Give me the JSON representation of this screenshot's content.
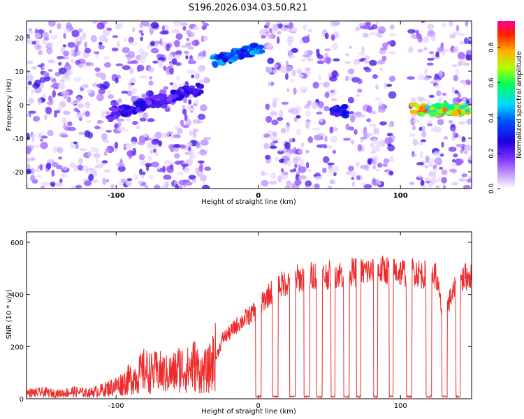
{
  "title": "S196.2026.034.03.50.R21",
  "chart_data": [
    {
      "type": "heatmap",
      "xlabel": "Height of straight line (km)",
      "ylabel": "Frequency (Hz)",
      "xlim": [
        -163,
        150
      ],
      "ylim": [
        -25,
        25
      ],
      "xticks": [
        -100,
        0,
        100
      ],
      "yticks": [
        -20,
        -10,
        0,
        10,
        20
      ],
      "colorbar": {
        "label": "Normalized spectral amplitude",
        "range": [
          0.0,
          0.95
        ],
        "ticks": [
          "0.0",
          "0.2",
          "0.4",
          "0.6",
          "0.8"
        ],
        "colors": [
          "#ffffff",
          "#c9a0ff",
          "#7a33ff",
          "#1a00e0",
          "#0050ff",
          "#00d8ff",
          "#00ff60",
          "#b0ff00",
          "#ffb000",
          "#ff2000",
          "#ff0090"
        ]
      },
      "features": [
        {
          "name": "rising trend",
          "x": [
            -105,
            -40
          ],
          "freq": [
            -3,
            5
          ],
          "peak": 0.3
        },
        {
          "name": "upper band",
          "x": [
            -32,
            3
          ],
          "freq": [
            13,
            17
          ],
          "peak": 0.5
        },
        {
          "name": "narrow line",
          "x": [
            52,
            62
          ],
          "freq": [
            -2,
            -2
          ],
          "peak": 0.35
        },
        {
          "name": "flat line",
          "x": [
            108,
            148
          ],
          "freq": [
            -1.5,
            -1.5
          ],
          "peak": 0.9
        }
      ],
      "blank_intervals": [
        [
          -35,
          3
        ],
        [
          37,
          40
        ],
        [
          55,
          62
        ],
        [
          95,
          107
        ],
        [
          132,
          135
        ]
      ]
    },
    {
      "type": "line",
      "xlabel": "Height of straight line (km)",
      "ylabel": "SNR (10 * v/v)",
      "xlim": [
        -163,
        150
      ],
      "ylim": [
        0,
        640
      ],
      "xticks": [
        -100,
        0,
        100
      ],
      "yticks": [
        0,
        200,
        400,
        600
      ],
      "series": [
        {
          "name": "SNR",
          "color": "#ee2a2a",
          "x": [
            -163,
            -150,
            -140,
            -130,
            -120,
            -110,
            -100,
            -95,
            -90,
            -85,
            -80,
            -75,
            -70,
            -65,
            -60,
            -55,
            -50,
            -45,
            -40,
            -35,
            -30,
            -25,
            -20,
            -15,
            -10,
            -5,
            0,
            5,
            10,
            15,
            20,
            25,
            30,
            35,
            40,
            45,
            50,
            55,
            60,
            65,
            70,
            75,
            80,
            85,
            90,
            95,
            100,
            105,
            110,
            115,
            120,
            125,
            130,
            135,
            140,
            145,
            150
          ],
          "values": [
            20,
            22,
            18,
            25,
            20,
            30,
            45,
            55,
            70,
            80,
            100,
            90,
            95,
            85,
            90,
            110,
            100,
            120,
            90,
            100,
            150,
            230,
            250,
            280,
            300,
            320,
            340,
            380,
            410,
            430,
            440,
            460,
            455,
            465,
            470,
            465,
            470,
            475,
            470,
            480,
            478,
            482,
            480,
            485,
            488,
            482,
            480,
            478,
            485,
            470,
            472,
            468,
            300,
            380,
            430,
            460,
            470
          ],
          "dropouts": [
            [
              -2,
              2
            ],
            [
              10,
              14
            ],
            [
              22,
              26
            ],
            [
              32,
              36
            ],
            [
              41,
              45
            ],
            [
              51,
              54
            ],
            [
              60,
              64
            ],
            [
              69,
              72
            ],
            [
              81,
              84
            ],
            [
              92,
              95
            ],
            [
              104,
              108
            ],
            [
              118,
              122
            ],
            [
              129,
              133
            ],
            [
              139,
              142
            ]
          ]
        }
      ]
    }
  ]
}
